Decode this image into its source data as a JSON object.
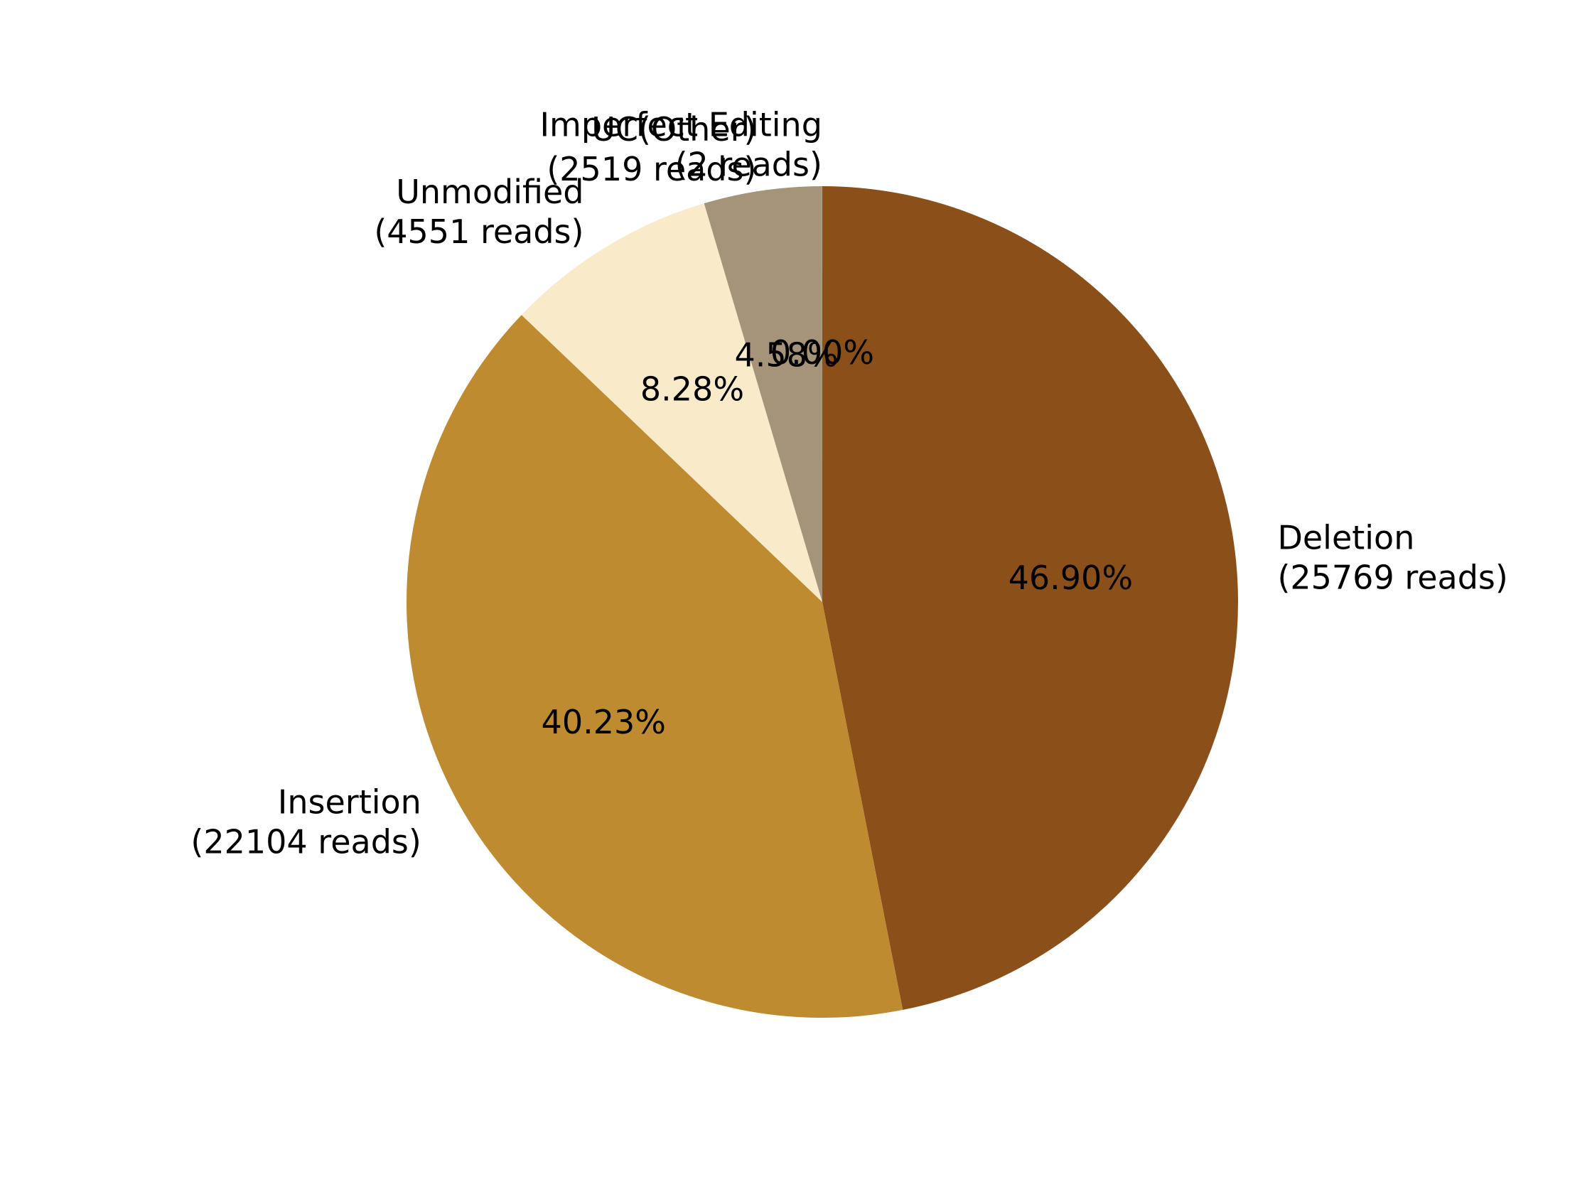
{
  "chart_data": {
    "type": "pie",
    "start_angle_deg": 90,
    "direction": "clockwise",
    "slices": [
      {
        "name": "Deletion",
        "reads_label": "(25769 reads)",
        "reads": 25769,
        "pct_label": "46.90%",
        "color": "#8b4f1a"
      },
      {
        "name": "Insertion",
        "reads_label": "(22104 reads)",
        "reads": 22104,
        "pct_label": "40.23%",
        "color": "#bf8b30"
      },
      {
        "name": "Unmodified",
        "reads_label": "(4551 reads)",
        "reads": 4551,
        "pct_label": "8.28%",
        "color": "#f9eaca"
      },
      {
        "name": "UC(Other)",
        "reads_label": "(2519 reads)",
        "reads": 2519,
        "pct_label": "4.58%",
        "color": "#a5947a"
      },
      {
        "name": "Imperfect Editing",
        "reads_label": "(2 reads)",
        "reads": 2,
        "pct_label": "0.00%",
        "color": "#c8b48a"
      }
    ]
  }
}
